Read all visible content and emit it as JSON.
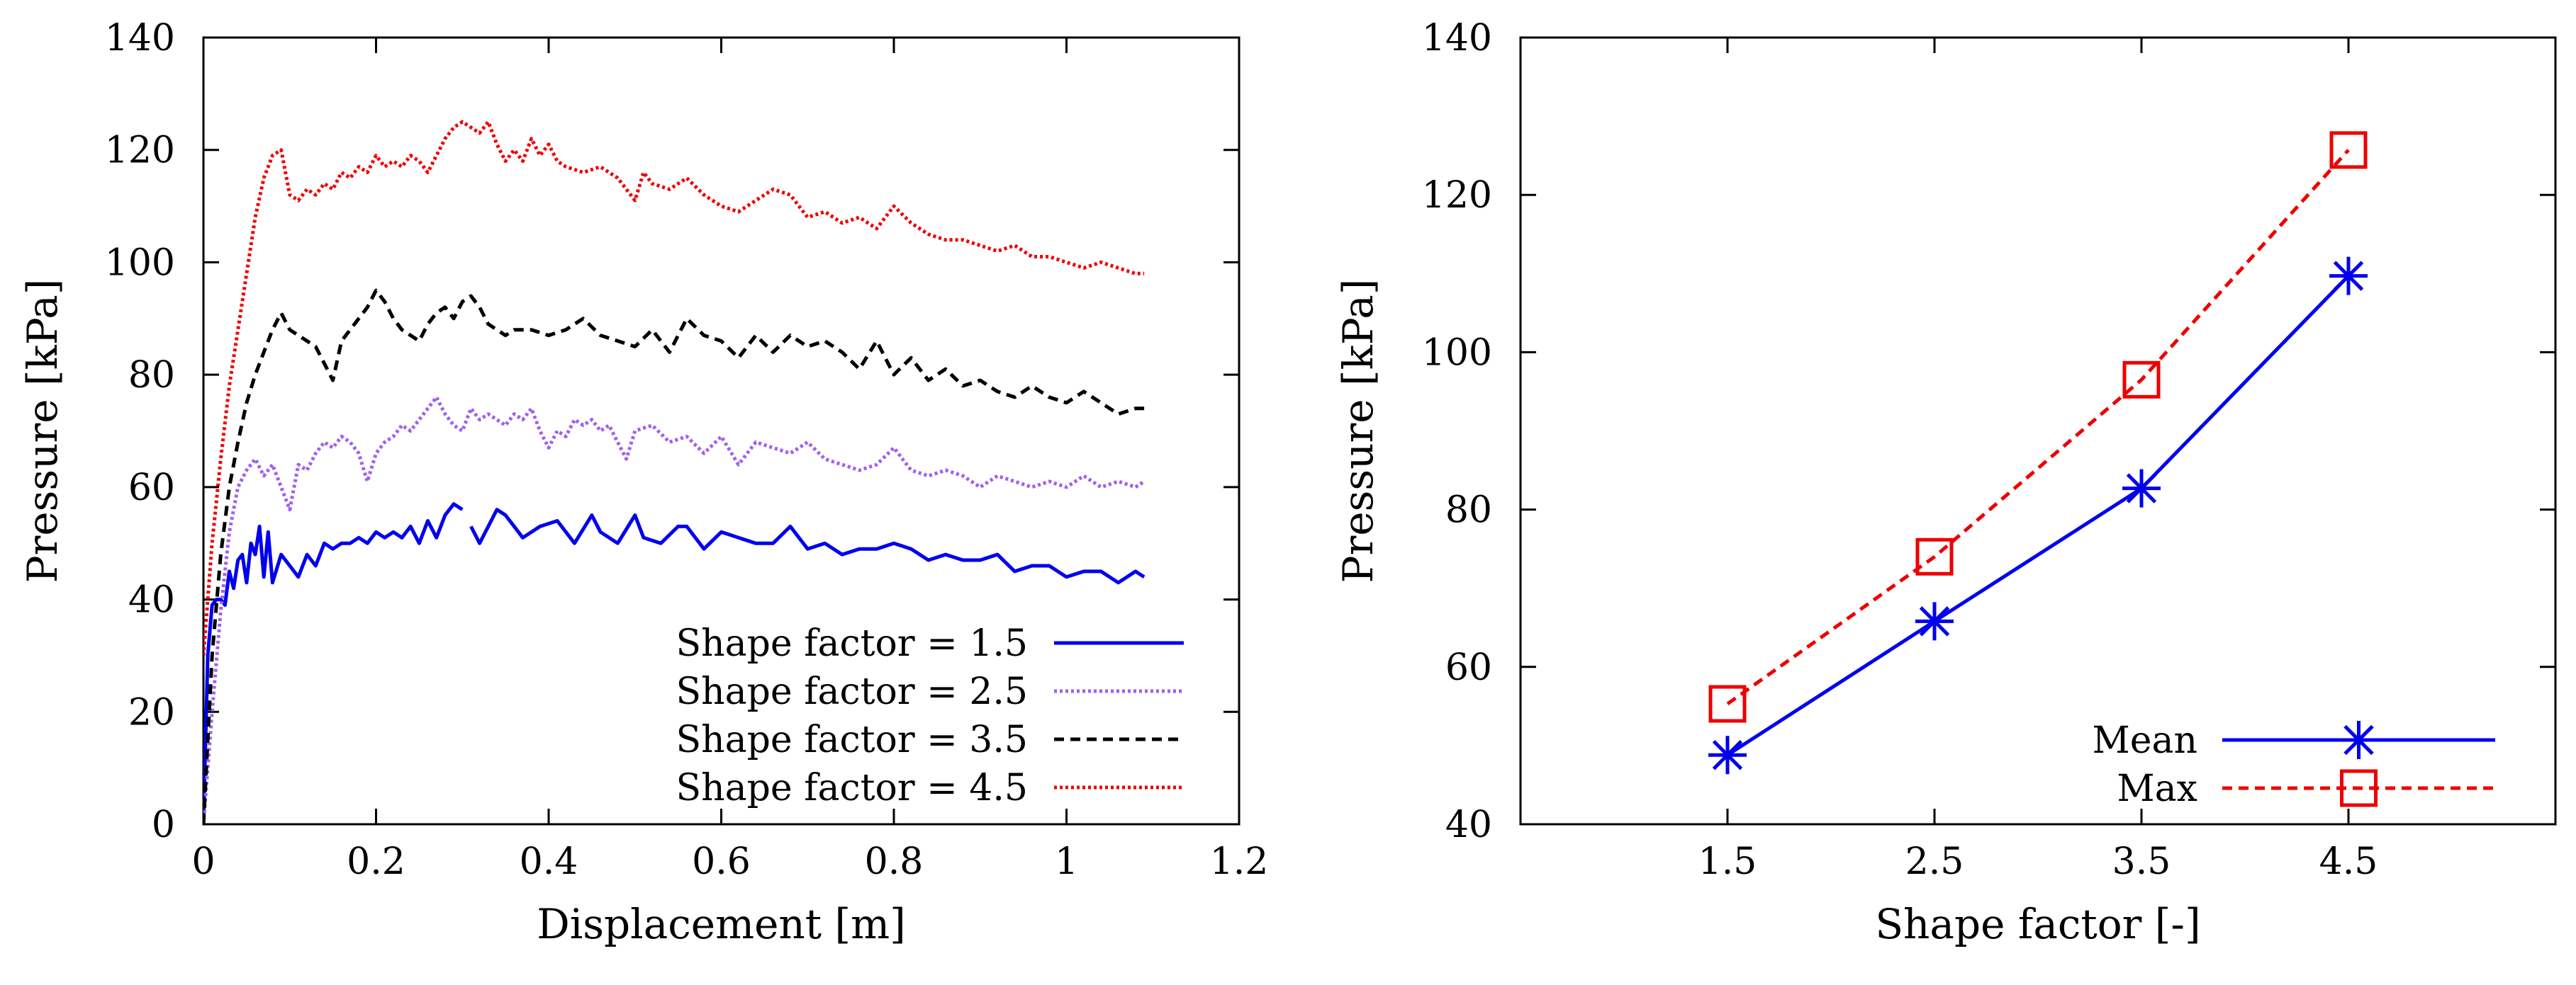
{
  "chart_data": [
    {
      "type": "line",
      "title": "",
      "xlabel": "Displacement [m]",
      "ylabel": "Pressure [kPa]",
      "xlim": [
        0,
        1.2
      ],
      "ylim": [
        0,
        140
      ],
      "xticks": [
        0,
        0.2,
        0.4,
        0.6,
        0.8,
        1,
        1.2
      ],
      "xtick_labels": [
        "0",
        "0.2",
        "0.4",
        "0.6",
        "0.8",
        "1",
        "1.2"
      ],
      "yticks": [
        0,
        20,
        40,
        60,
        80,
        100,
        120,
        140
      ],
      "ytick_labels": [
        "0",
        "20",
        "40",
        "60",
        "80",
        "100",
        "120",
        "140"
      ],
      "grid": false,
      "legend_position": "bottom-right",
      "series": [
        {
          "name": "Shape factor = 1.5",
          "color": "#0000ee",
          "dash": "solid",
          "x": [
            0.0,
            0.005,
            0.01,
            0.015,
            0.02,
            0.025,
            0.03,
            0.035,
            0.04,
            0.045,
            0.05,
            0.055,
            0.06,
            0.065,
            0.07,
            0.075,
            0.08,
            0.09,
            0.1,
            0.11,
            0.12,
            0.13,
            0.14,
            0.15,
            0.16,
            0.17,
            0.18,
            0.19,
            0.2,
            0.21,
            0.22,
            0.23,
            0.24,
            0.25,
            0.26,
            0.27,
            0.28,
            0.29,
            0.3,
            null,
            0.31,
            0.32,
            0.34,
            0.35,
            0.37,
            0.39,
            0.41,
            0.43,
            0.45,
            0.46,
            0.48,
            0.5,
            0.51,
            0.53,
            0.55,
            0.56,
            0.58,
            0.6,
            0.62,
            0.64,
            0.66,
            0.68,
            0.7,
            0.72,
            0.74,
            0.76,
            0.78,
            0.8,
            0.82,
            0.84,
            0.86,
            0.88,
            0.9,
            0.92,
            0.94,
            0.96,
            0.98,
            1.0,
            1.02,
            1.04,
            1.06,
            1.08,
            1.09
          ],
          "y": [
            0,
            30,
            39,
            40,
            40,
            39,
            45,
            42,
            47,
            48,
            43,
            50,
            48,
            53,
            44,
            52,
            43,
            48,
            46,
            44,
            48,
            46,
            50,
            49,
            50,
            50,
            51,
            50,
            52,
            51,
            52,
            51,
            53,
            50,
            54,
            51,
            55,
            57,
            56,
            null,
            53,
            50,
            56,
            55,
            51,
            53,
            54,
            50,
            55,
            52,
            50,
            55,
            51,
            50,
            53,
            53,
            49,
            52,
            51,
            50,
            50,
            53,
            49,
            50,
            48,
            49,
            49,
            50,
            49,
            47,
            48,
            47,
            47,
            48,
            45,
            46,
            46,
            44,
            45,
            45,
            43,
            45,
            44
          ]
        },
        {
          "name": "Shape factor = 2.5",
          "color": "#9f5fef",
          "dash": "dotted",
          "x": [
            0.0,
            0.01,
            0.02,
            0.03,
            0.04,
            0.05,
            0.06,
            0.07,
            0.08,
            0.09,
            0.1,
            0.11,
            0.12,
            0.13,
            0.14,
            0.15,
            0.16,
            0.17,
            0.18,
            0.19,
            0.2,
            0.21,
            0.22,
            0.23,
            0.24,
            0.25,
            0.26,
            0.27,
            0.28,
            0.29,
            0.3,
            0.31,
            0.32,
            0.33,
            0.34,
            0.35,
            0.36,
            0.37,
            0.38,
            0.39,
            0.4,
            0.41,
            0.42,
            0.43,
            0.44,
            0.45,
            0.46,
            0.47,
            0.48,
            0.49,
            0.5,
            0.52,
            0.54,
            0.56,
            0.58,
            0.6,
            0.62,
            0.64,
            0.66,
            0.68,
            0.7,
            0.72,
            0.74,
            0.76,
            0.78,
            0.8,
            0.82,
            0.84,
            0.86,
            0.88,
            0.9,
            0.92,
            0.94,
            0.96,
            0.98,
            1.0,
            1.02,
            1.04,
            1.06,
            1.08,
            1.09
          ],
          "y": [
            0,
            20,
            38,
            52,
            60,
            63,
            65,
            62,
            64,
            60,
            56,
            64,
            63,
            66,
            68,
            67,
            69,
            68,
            66,
            61,
            66,
            68,
            69,
            71,
            70,
            72,
            74,
            76,
            73,
            71,
            70,
            74,
            72,
            73,
            72,
            71,
            73,
            72,
            74,
            70,
            67,
            70,
            69,
            72,
            71,
            72,
            70,
            71,
            68,
            65,
            70,
            71,
            68,
            69,
            66,
            69,
            64,
            68,
            67,
            66,
            68,
            65,
            64,
            63,
            64,
            67,
            63,
            62,
            63,
            62,
            60,
            62,
            61,
            60,
            61,
            60,
            62,
            60,
            61,
            60,
            61
          ]
        },
        {
          "name": "Shape factor = 3.5",
          "color": "#000000",
          "dash": "dashed",
          "x": [
            0.0,
            0.01,
            0.02,
            0.03,
            0.04,
            0.05,
            0.06,
            0.07,
            0.08,
            0.09,
            0.1,
            0.11,
            0.12,
            0.13,
            0.14,
            0.15,
            0.16,
            0.17,
            0.18,
            0.19,
            0.2,
            0.21,
            0.22,
            0.23,
            0.24,
            0.25,
            0.26,
            0.27,
            0.28,
            0.29,
            0.3,
            0.31,
            0.32,
            0.33,
            0.34,
            0.35,
            0.36,
            0.38,
            0.4,
            0.42,
            0.44,
            0.46,
            0.48,
            0.5,
            0.52,
            0.54,
            0.56,
            0.58,
            0.6,
            0.62,
            0.64,
            0.66,
            0.68,
            0.7,
            0.72,
            0.74,
            0.76,
            0.78,
            0.8,
            0.82,
            0.84,
            0.86,
            0.88,
            0.9,
            0.92,
            0.94,
            0.96,
            0.98,
            1.0,
            1.02,
            1.04,
            1.06,
            1.08,
            1.09
          ],
          "y": [
            0,
            30,
            48,
            60,
            68,
            75,
            80,
            84,
            88,
            91,
            88,
            87,
            86,
            85,
            82,
            79,
            86,
            88,
            90,
            92,
            95,
            93,
            90,
            88,
            87,
            86,
            89,
            91,
            92,
            90,
            93,
            94,
            92,
            89,
            88,
            87,
            88,
            88,
            87,
            88,
            90,
            87,
            86,
            85,
            88,
            84,
            90,
            87,
            86,
            83,
            87,
            84,
            87,
            85,
            86,
            84,
            81,
            86,
            80,
            83,
            79,
            81,
            78,
            79,
            77,
            76,
            78,
            76,
            75,
            77,
            75,
            73,
            74,
            74
          ]
        },
        {
          "name": "Shape factor = 4.5",
          "color": "#ee0000",
          "dash": "dotted",
          "x": [
            0.0,
            0.01,
            0.02,
            0.03,
            0.04,
            0.05,
            0.06,
            0.07,
            0.08,
            0.09,
            0.1,
            0.11,
            0.12,
            0.13,
            0.14,
            0.15,
            0.16,
            0.17,
            0.18,
            0.19,
            0.2,
            0.21,
            0.22,
            0.23,
            0.24,
            0.25,
            0.26,
            0.27,
            0.28,
            0.29,
            0.3,
            0.31,
            0.32,
            0.33,
            0.34,
            0.35,
            0.36,
            0.37,
            0.38,
            0.39,
            0.4,
            0.41,
            0.42,
            0.44,
            0.46,
            0.48,
            0.5,
            0.51,
            0.52,
            0.54,
            0.56,
            0.58,
            0.6,
            0.62,
            0.64,
            0.66,
            0.68,
            0.7,
            0.72,
            0.74,
            0.76,
            0.78,
            0.8,
            0.82,
            0.84,
            0.86,
            0.88,
            0.9,
            0.92,
            0.94,
            0.96,
            0.98,
            1.0,
            1.02,
            1.04,
            1.06,
            1.08,
            1.09
          ],
          "y": [
            30,
            50,
            65,
            78,
            88,
            98,
            108,
            115,
            119,
            120,
            112,
            111,
            113,
            112,
            114,
            113,
            116,
            115,
            117,
            116,
            119,
            117,
            118,
            117,
            119,
            118,
            116,
            119,
            122,
            124,
            125,
            124,
            123,
            125,
            121,
            118,
            120,
            118,
            122,
            119,
            121,
            118,
            117,
            116,
            117,
            115,
            111,
            116,
            114,
            113,
            115,
            112,
            110,
            109,
            111,
            113,
            112,
            108,
            109,
            107,
            108,
            106,
            110,
            107,
            105,
            104,
            104,
            103,
            102,
            103,
            101,
            101,
            100,
            99,
            100,
            99,
            98,
            98
          ]
        }
      ]
    },
    {
      "type": "line",
      "title": "",
      "xlabel": "Shape factor [-]",
      "ylabel": "Pressure [kPa]",
      "xlim": [
        0.5,
        5.5
      ],
      "ylim": [
        40,
        140
      ],
      "xticks": [
        1.5,
        2.5,
        3.5,
        4.5
      ],
      "xtick_labels": [
        "1.5",
        "2.5",
        "3.5",
        "4.5"
      ],
      "yticks": [
        40,
        60,
        80,
        100,
        120,
        140
      ],
      "ytick_labels": [
        "40",
        "60",
        "80",
        "100",
        "120",
        "140"
      ],
      "grid": false,
      "legend_position": "bottom-right",
      "series": [
        {
          "name": "Mean",
          "color": "#0000ee",
          "dash": "solid",
          "marker": "asterisk",
          "x": [
            1.5,
            2.5,
            3.5,
            4.5
          ],
          "y": [
            48.8,
            65.8,
            82.7,
            109.7
          ]
        },
        {
          "name": "Max",
          "color": "#ee0000",
          "dash": "dashed",
          "marker": "square",
          "x": [
            1.5,
            2.5,
            3.5,
            4.5
          ],
          "y": [
            55.3,
            74.0,
            96.5,
            125.7
          ]
        }
      ]
    }
  ]
}
